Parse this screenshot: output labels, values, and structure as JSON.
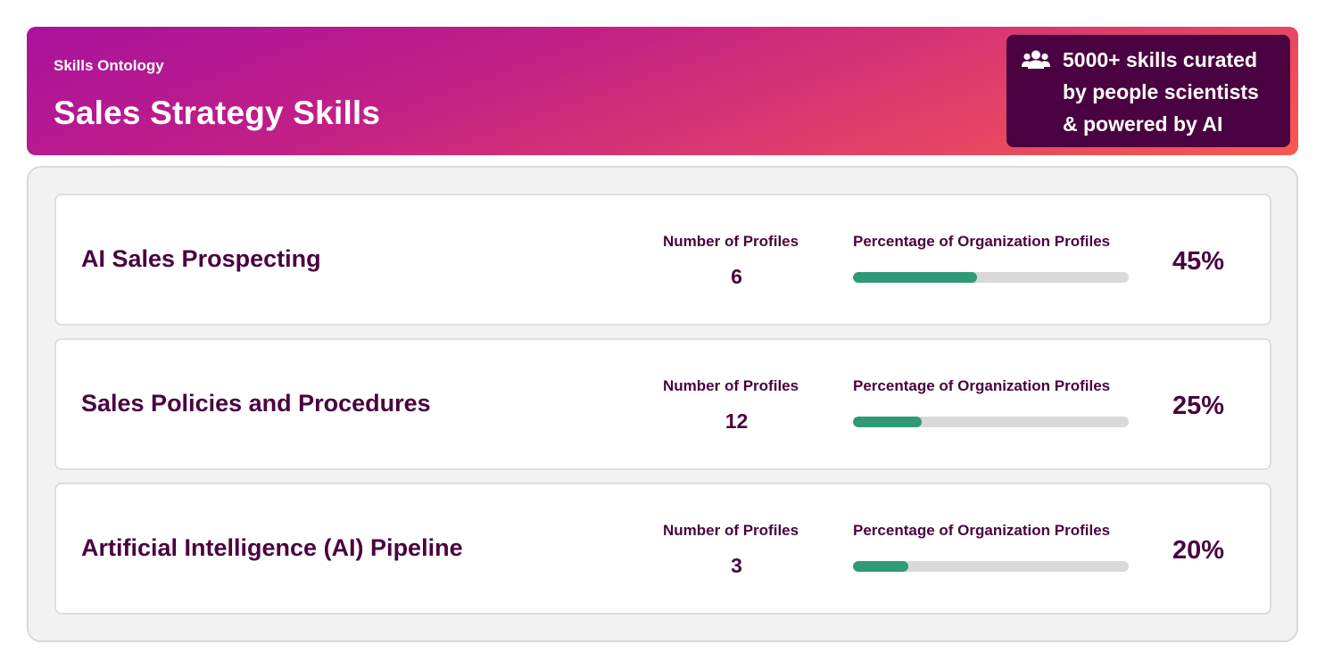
{
  "header": {
    "eyebrow": "Skills Ontology",
    "title": "Sales Strategy Skills",
    "callout_icon": "people-group-icon",
    "callout_lines": [
      "5000+ skills curated",
      "by people scientists",
      "& powered by AI"
    ]
  },
  "skills": [
    {
      "name": "AI Sales Prospecting",
      "profiles_label": "Number of Profiles",
      "profiles_count": "6",
      "percentage_label": "Percentage of Organization Profiles",
      "percentage_text": "45%",
      "percentage_value": 0.45
    },
    {
      "name": "Sales Policies and Procedures",
      "profiles_label": "Number of Profiles",
      "profiles_count": "12",
      "percentage_label": "Percentage of Organization Profiles",
      "percentage_text": "25%",
      "percentage_value": 0.25
    },
    {
      "name": "Artificial Intelligence (AI) Pipeline",
      "profiles_label": "Number of Profiles",
      "profiles_count": "3",
      "percentage_label": "Percentage of Organization Profiles",
      "percentage_text": "20%",
      "percentage_value": 0.2
    }
  ],
  "colors": {
    "brand_dark": "#4a0340",
    "gradient_start": "#a8129c",
    "gradient_end": "#f75a4d",
    "bar_fill": "#2e9a77",
    "bar_track": "#d9d9d9"
  }
}
